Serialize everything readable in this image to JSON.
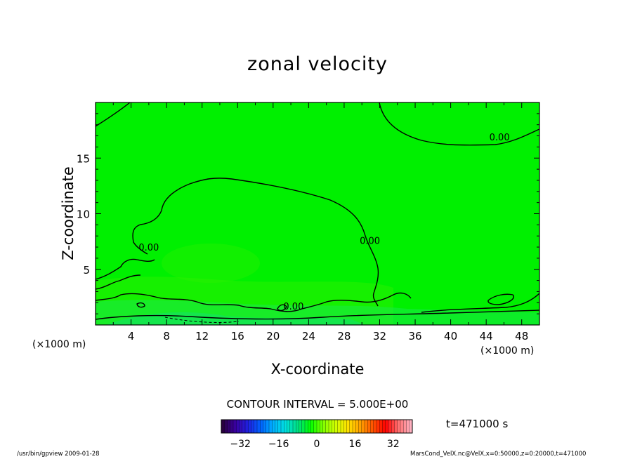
{
  "chart_data": {
    "type": "heatmap",
    "title": "zonal velocity",
    "xlabel": "X-coordinate",
    "ylabel": "Z-coordinate",
    "x_unit": "(×1000 m)",
    "y_unit": "(×1000 m)",
    "xlim": [
      0,
      50
    ],
    "ylim": [
      0,
      20
    ],
    "x_ticks": [
      4,
      8,
      12,
      16,
      20,
      24,
      28,
      32,
      36,
      40,
      44,
      48
    ],
    "y_ticks": [
      5,
      10,
      15
    ],
    "contour_labels": [
      {
        "text": "0.00",
        "x": 45.5,
        "y": 16.6
      },
      {
        "text": "0.00",
        "x": 6.0,
        "y": 6.7
      },
      {
        "text": "0.00",
        "x": 30.9,
        "y": 7.3
      },
      {
        "text": "0.00",
        "x": 22.3,
        "y": 1.4
      }
    ],
    "contour_interval": "CONTOUR INTERVAL = 5.000E+00",
    "colorbar": {
      "min": -40,
      "max": 40,
      "ticks": [
        -32,
        -16,
        0,
        16,
        32
      ],
      "colors": [
        "#2a0040",
        "#3a00a0",
        "#2020e0",
        "#0060ff",
        "#00b0ff",
        "#00e0e0",
        "#00e080",
        "#00ff00",
        "#80ff00",
        "#d0ff00",
        "#ffe000",
        "#ffa000",
        "#ff5000",
        "#ff0000",
        "#ff7070",
        "#ffb0c0"
      ]
    },
    "time": "t=471000 s",
    "background_color": "#00f000"
  },
  "footer": {
    "left": "/usr/bin/gpview   2009-01-28",
    "right": "MarsCond_VelX.nc@VelX,x=0:50000,z=0:20000,t=471000"
  }
}
